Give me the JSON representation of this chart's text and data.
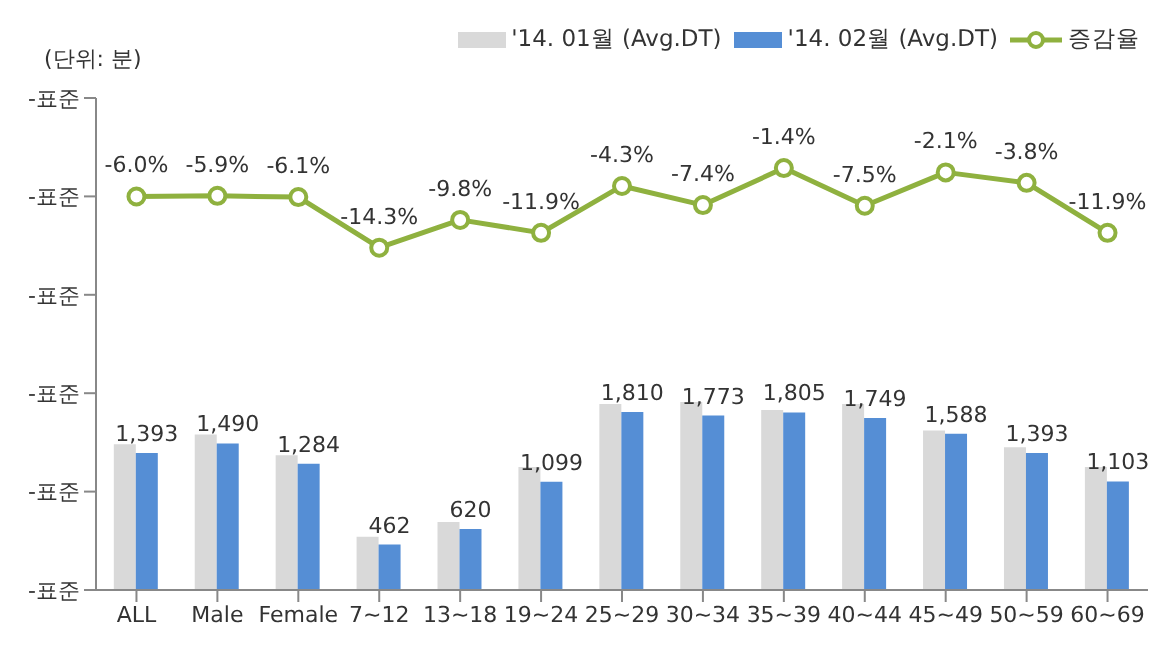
{
  "chart_data": {
    "type": "bar",
    "categories": [
      "ALL",
      "Male",
      "Female",
      "7~12",
      "13~18",
      "19~24",
      "25~29",
      "30~34",
      "35~39",
      "40~44",
      "45~49",
      "50~59",
      "60~69"
    ],
    "series": [
      {
        "name": "'14. 01월 (Avg.DT)",
        "color": "#d9d9d9",
        "values": [
          1480,
          1580,
          1370,
          540,
          690,
          1250,
          1890,
          1910,
          1830,
          1890,
          1620,
          1450,
          1250
        ]
      },
      {
        "name": "'14. 02월 (Avg.DT)",
        "color": "#558ed5",
        "values": [
          1393,
          1490,
          1284,
          462,
          620,
          1099,
          1810,
          1773,
          1805,
          1749,
          1588,
          1393,
          1103
        ],
        "value_labels": [
          "1,393",
          "1,490",
          "1,284",
          "462",
          "620",
          "1,099",
          "1,810",
          "1,773",
          "1,805",
          "1,749",
          "1,588",
          "1,393",
          "1,103"
        ]
      },
      {
        "name": "증감율",
        "type": "line",
        "axis": "y2",
        "color": "#8fb13f",
        "marker": "circle",
        "values": [
          -6.0,
          -5.9,
          -6.1,
          -14.3,
          -9.8,
          -11.9,
          -4.3,
          -7.4,
          -1.4,
          -7.5,
          -2.1,
          -3.8,
          -11.9
        ],
        "value_labels": [
          "-6.0%",
          "-5.9%",
          "-6.1%",
          "-14.3%",
          "-9.8%",
          "-11.9%",
          "-4.3%",
          "-7.4%",
          "-1.4%",
          "-7.5%",
          "-2.1%",
          "-3.8%",
          "-11.9%"
        ]
      }
    ],
    "ylim": [
      0,
      5000
    ],
    "annotations": [
      "(단위: 분)",
      "-표준",
      "-표준",
      "-표준",
      "-표준",
      "-표준",
      "-표준"
    ],
    "legend": "top right"
  }
}
